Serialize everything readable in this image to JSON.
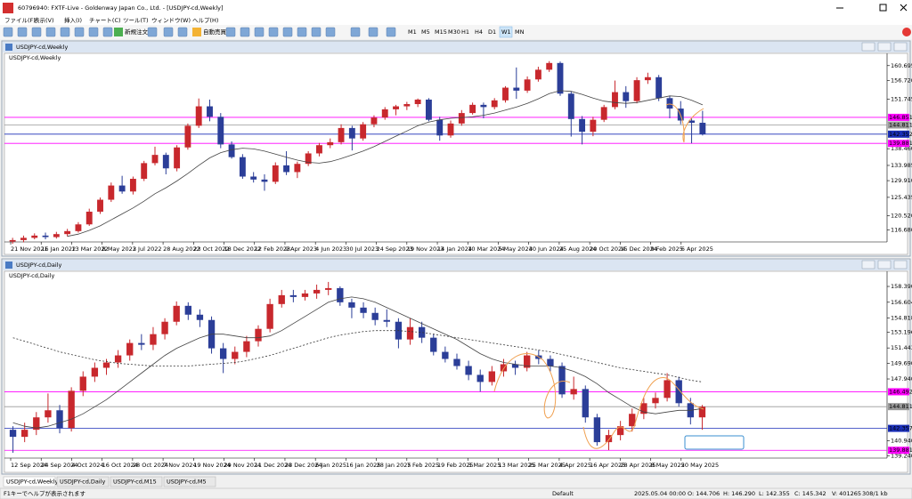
{
  "window": {
    "title": "60796940: FXTF-Live - Goldenway Japan Co., Ltd. - [USDJPY-cd,Weekly]",
    "menu": [
      "ファイル(F)",
      "表示(V)",
      "挿入(I)",
      "チャート(C)",
      "ツール(T)",
      "ウィンドウ(W)",
      "ヘルプ(H)"
    ]
  },
  "toolbar": {
    "buttons": [
      "新規注文",
      "自動売買"
    ],
    "timeframes": [
      "M1",
      "M5",
      "M15",
      "M30",
      "H1",
      "H4",
      "D1",
      "W1",
      "MN"
    ],
    "active_timeframe": "W1"
  },
  "chart_data": [
    {
      "type": "candlestick",
      "title": "USDJPY-cd,Weekly",
      "label": "USDJPY-cd,Weekly",
      "up_color": "#c8282d",
      "down_color": "#2b3e98",
      "ylim": [
        113.5,
        163.5
      ],
      "yticks": [
        160.695,
        {
          "value": 156.72,
          "label": "156.720"
        },
        151.745,
        {
          "value": 138.46,
          "label": "138.460"
        },
        133.985,
        {
          "value": 129.91,
          "label": "129.910"
        },
        125.435,
        {
          "value": 120.52,
          "label": "120.520"
        },
        {
          "value": 116.68,
          "label": "116.680"
        }
      ],
      "hlines": [
        {
          "value": 146.851,
          "color": "#ff00ff"
        },
        {
          "value": 144.811,
          "color": "#999999"
        },
        {
          "value": 142.352,
          "color": "#1a2fb8"
        },
        {
          "value": 139.881,
          "color": "#ff00ff"
        }
      ],
      "dates": [
        "21 Nov 2021",
        "16 Jan 2022",
        "13 Mar 2022",
        "8 May 2022",
        "3 Jul 2022",
        "28 Aug 2022",
        "23 Oct 2022",
        "18 Dec 2022",
        "12 Feb 2023",
        "9 Apr 2023",
        "4 Jun 2023",
        "30 Jul 2023",
        "24 Sep 2023",
        "19 Nov 2023",
        "14 Jan 2024",
        "10 Mar 2024",
        "5 May 2024",
        "30 Jun 2024",
        "25 Aug 2024",
        "20 Oct 2024",
        "15 Dec 2024",
        "9 Feb 2025",
        "6 Apr 2025"
      ],
      "candles": [
        [
          113.6,
          114.6,
          113.0,
          114.0
        ],
        [
          114.0,
          115.2,
          113.4,
          114.6
        ],
        [
          114.6,
          115.8,
          114.2,
          115.2
        ],
        [
          115.2,
          116.0,
          114.2,
          114.8
        ],
        [
          114.8,
          116.2,
          114.4,
          115.6
        ],
        [
          115.6,
          117.0,
          115.0,
          116.4
        ],
        [
          116.4,
          118.8,
          116.0,
          118.2
        ],
        [
          118.2,
          122.4,
          117.8,
          121.6
        ],
        [
          121.6,
          125.4,
          121.0,
          124.8
        ],
        [
          124.8,
          129.4,
          124.2,
          128.6
        ],
        [
          128.6,
          131.2,
          126.4,
          127.0
        ],
        [
          127.0,
          131.0,
          126.2,
          130.4
        ],
        [
          130.4,
          135.2,
          129.8,
          134.6
        ],
        [
          134.6,
          139.0,
          134.0,
          136.8
        ],
        [
          136.8,
          137.4,
          131.6,
          133.2
        ],
        [
          133.2,
          139.4,
          132.4,
          138.8
        ],
        [
          138.8,
          145.2,
          138.2,
          144.6
        ],
        [
          144.6,
          151.9,
          144.0,
          149.8
        ],
        [
          149.8,
          151.6,
          145.8,
          147.0
        ],
        [
          147.0,
          148.0,
          138.6,
          139.6
        ],
        [
          139.6,
          140.4,
          135.8,
          136.2
        ],
        [
          136.2,
          137.0,
          130.4,
          131.0
        ],
        [
          131.0,
          132.2,
          129.4,
          130.2
        ],
        [
          130.2,
          131.6,
          127.2,
          129.6
        ],
        [
          129.6,
          134.8,
          129.0,
          134.0
        ],
        [
          134.0,
          137.8,
          131.4,
          132.2
        ],
        [
          132.2,
          135.0,
          130.6,
          134.4
        ],
        [
          134.4,
          137.8,
          133.8,
          137.2
        ],
        [
          137.2,
          140.0,
          136.4,
          139.4
        ],
        [
          139.4,
          141.2,
          138.6,
          140.2
        ],
        [
          140.2,
          145.0,
          139.6,
          144.0
        ],
        [
          144.0,
          144.6,
          138.0,
          141.2
        ],
        [
          141.2,
          145.6,
          140.6,
          145.0
        ],
        [
          145.0,
          147.4,
          144.2,
          146.8
        ],
        [
          146.8,
          149.6,
          146.2,
          149.0
        ],
        [
          149.0,
          150.2,
          147.4,
          149.8
        ],
        [
          149.8,
          151.0,
          148.8,
          150.4
        ],
        [
          150.4,
          151.9,
          149.6,
          151.6
        ],
        [
          151.6,
          152.0,
          145.8,
          146.2
        ],
        [
          146.2,
          147.0,
          140.6,
          142.0
        ],
        [
          142.0,
          146.0,
          141.4,
          145.2
        ],
        [
          145.2,
          148.8,
          144.6,
          148.0
        ],
        [
          148.0,
          150.8,
          147.6,
          150.2
        ],
        [
          150.2,
          150.8,
          146.6,
          149.6
        ],
        [
          149.6,
          152.0,
          149.0,
          151.4
        ],
        [
          151.4,
          155.2,
          150.8,
          154.8
        ],
        [
          154.8,
          160.2,
          151.8,
          154.0
        ],
        [
          154.0,
          157.8,
          153.4,
          157.0
        ],
        [
          157.0,
          160.4,
          156.4,
          159.6
        ],
        [
          159.6,
          161.9,
          159.0,
          161.4
        ],
        [
          161.4,
          161.8,
          152.6,
          153.2
        ],
        [
          153.2,
          153.8,
          141.7,
          146.4
        ],
        [
          146.4,
          147.2,
          139.6,
          143.0
        ],
        [
          143.0,
          147.0,
          141.8,
          146.2
        ],
        [
          146.2,
          150.2,
          145.6,
          149.6
        ],
        [
          149.6,
          156.7,
          149.0,
          153.6
        ],
        [
          153.6,
          155.2,
          149.4,
          151.2
        ],
        [
          151.2,
          157.6,
          150.6,
          156.8
        ],
        [
          156.8,
          158.8,
          155.8,
          157.6
        ],
        [
          157.6,
          158.2,
          151.2,
          152.0
        ],
        [
          152.0,
          152.6,
          146.6,
          149.2
        ],
        [
          149.2,
          151.2,
          145.0,
          146.0
        ],
        [
          146.0,
          146.6,
          139.9,
          145.4
        ],
        [
          145.4,
          148.6,
          142.0,
          142.4
        ]
      ],
      "ma": [
        {
          "color": "#444444",
          "dashed": false,
          "values": [
            null,
            null,
            null,
            null,
            null,
            115.0,
            115.6,
            116.6,
            117.8,
            119.4,
            121.0,
            122.6,
            124.4,
            126.4,
            128.0,
            129.8,
            131.8,
            134.0,
            136.0,
            137.4,
            138.2,
            138.6,
            138.4,
            137.8,
            137.0,
            136.2,
            135.4,
            134.8,
            134.6,
            135.0,
            135.8,
            136.8,
            137.8,
            139.0,
            140.4,
            141.8,
            143.2,
            144.6,
            145.6,
            146.2,
            146.6,
            146.8,
            147.0,
            147.4,
            148.0,
            148.8,
            149.6,
            150.6,
            151.8,
            153.2,
            154.0,
            153.8,
            153.0,
            152.0,
            151.2,
            150.8,
            150.6,
            150.8,
            151.4,
            152.0,
            152.6,
            152.4,
            151.4,
            150.2
          ]
        }
      ]
    },
    {
      "type": "candlestick",
      "title": "USDJPY-cd,Daily",
      "label": "USDJPY-cd,Daily",
      "up_color": "#c8282d",
      "down_color": "#2b3e98",
      "ylim": [
        139.0,
        159.9
      ],
      "yticks": [
        {
          "value": 158.39,
          "label": "158.390"
        },
        156.604,
        154.818,
        153.196,
        151.443,
        {
          "value": 149.69,
          "label": "149.690"
        },
        {
          "value": 147.94,
          "label": "147.940"
        },
        {
          "value": 140.94,
          "label": "140.940"
        },
        {
          "value": 139.24,
          "label": "139.240"
        }
      ],
      "hlines": [
        {
          "value": 146.492,
          "color": "#ff00ff"
        },
        {
          "value": 144.811,
          "color": "#999999"
        },
        {
          "value": 142.357,
          "color": "#1a2fb8"
        },
        {
          "value": 139.881,
          "color": "#ff00ff"
        }
      ],
      "dates": [
        "12 Sep 2024",
        "24 Sep 2024",
        "4 Oct 2024",
        "16 Oct 2024",
        "28 Oct 2024",
        "7 Nov 2024",
        "19 Nov 2024",
        "29 Nov 2024",
        "11 Dec 2024",
        "23 Dec 2024",
        "6 Jan 2025",
        "16 Jan 2025",
        "28 Jan 2025",
        "7 Feb 2025",
        "19 Feb 2025",
        "3 Mar 2025",
        "13 Mar 2025",
        "25 Mar 2025",
        "4 Apr 2025",
        "16 Apr 2025",
        "28 Apr 2025",
        "8 May 2025",
        "20 May 2025"
      ],
      "candles": [
        [
          142.2,
          142.6,
          139.6,
          141.4
        ],
        [
          141.4,
          143.0,
          140.8,
          142.2
        ],
        [
          142.2,
          144.2,
          141.6,
          143.6
        ],
        [
          143.6,
          146.3,
          143.0,
          144.4
        ],
        [
          144.4,
          145.0,
          141.8,
          142.4
        ],
        [
          142.4,
          147.0,
          142.0,
          146.6
        ],
        [
          146.6,
          148.8,
          146.0,
          148.2
        ],
        [
          148.2,
          149.8,
          147.6,
          149.2
        ],
        [
          149.2,
          150.2,
          148.4,
          149.8
        ],
        [
          149.8,
          151.2,
          149.2,
          150.6
        ],
        [
          150.6,
          152.4,
          150.0,
          152.0
        ],
        [
          152.0,
          153.0,
          151.2,
          151.8
        ],
        [
          151.8,
          153.8,
          151.2,
          153.0
        ],
        [
          153.0,
          154.8,
          152.4,
          154.4
        ],
        [
          154.4,
          156.7,
          154.0,
          156.2
        ],
        [
          156.2,
          156.6,
          154.6,
          155.2
        ],
        [
          155.2,
          155.8,
          153.8,
          154.6
        ],
        [
          154.6,
          155.0,
          150.8,
          151.4
        ],
        [
          151.4,
          152.0,
          148.6,
          150.2
        ],
        [
          150.2,
          151.6,
          149.6,
          151.0
        ],
        [
          151.0,
          152.8,
          150.4,
          152.2
        ],
        [
          152.2,
          154.0,
          151.6,
          153.6
        ],
        [
          153.6,
          157.0,
          153.2,
          156.4
        ],
        [
          156.4,
          158.0,
          156.0,
          157.4
        ],
        [
          157.4,
          158.0,
          156.6,
          157.2
        ],
        [
          157.2,
          158.0,
          156.8,
          157.6
        ],
        [
          157.6,
          158.6,
          157.0,
          158.0
        ],
        [
          158.0,
          158.9,
          157.4,
          158.2
        ],
        [
          158.2,
          158.4,
          156.2,
          156.6
        ],
        [
          156.6,
          157.0,
          154.8,
          156.0
        ],
        [
          156.0,
          156.6,
          154.8,
          155.4
        ],
        [
          155.4,
          156.0,
          154.0,
          154.6
        ],
        [
          154.6,
          155.8,
          153.8,
          154.4
        ],
        [
          154.4,
          154.8,
          151.4,
          152.4
        ],
        [
          152.4,
          154.8,
          151.8,
          153.8
        ],
        [
          153.8,
          154.4,
          152.0,
          152.6
        ],
        [
          152.6,
          153.0,
          150.6,
          151.0
        ],
        [
          151.0,
          151.6,
          149.8,
          150.2
        ],
        [
          150.2,
          150.8,
          149.0,
          149.4
        ],
        [
          149.4,
          150.0,
          147.8,
          148.4
        ],
        [
          148.4,
          149.0,
          146.5,
          147.6
        ],
        [
          147.6,
          149.4,
          147.2,
          148.8
        ],
        [
          148.8,
          150.2,
          148.2,
          149.6
        ],
        [
          149.6,
          150.0,
          148.4,
          149.2
        ],
        [
          149.2,
          151.0,
          148.8,
          150.6
        ],
        [
          150.6,
          151.2,
          149.6,
          150.2
        ],
        [
          150.2,
          150.6,
          148.8,
          149.4
        ],
        [
          149.4,
          149.8,
          145.8,
          146.2
        ],
        [
          146.2,
          148.2,
          145.6,
          146.8
        ],
        [
          146.8,
          147.2,
          143.0,
          143.6
        ],
        [
          143.6,
          144.0,
          140.4,
          140.8
        ],
        [
          140.8,
          142.2,
          139.9,
          141.6
        ],
        [
          141.6,
          143.2,
          141.0,
          142.6
        ],
        [
          142.6,
          144.6,
          142.0,
          144.0
        ],
        [
          144.0,
          145.8,
          143.4,
          145.2
        ],
        [
          145.2,
          146.4,
          144.6,
          145.8
        ],
        [
          145.8,
          148.6,
          145.4,
          147.8
        ],
        [
          147.8,
          148.2,
          144.8,
          145.2
        ],
        [
          145.2,
          145.8,
          142.8,
          143.6
        ],
        [
          143.6,
          145.0,
          142.2,
          144.8
        ]
      ],
      "ma": [
        {
          "color": "#444444",
          "dashed": false,
          "values": [
            143.0,
            142.6,
            142.4,
            142.6,
            143.0,
            143.4,
            144.0,
            144.8,
            145.6,
            146.6,
            147.6,
            148.6,
            149.6,
            150.6,
            151.4,
            152.0,
            152.6,
            153.0,
            153.0,
            152.8,
            152.6,
            152.6,
            152.8,
            153.4,
            154.2,
            155.0,
            155.8,
            156.6,
            157.0,
            157.2,
            157.0,
            156.6,
            156.0,
            155.4,
            154.8,
            154.2,
            153.6,
            153.0,
            152.4,
            151.6,
            150.8,
            150.2,
            149.8,
            149.6,
            149.4,
            149.4,
            149.4,
            149.2,
            148.8,
            148.2,
            147.4,
            146.4,
            145.6,
            144.8,
            144.2,
            144.0,
            144.2,
            144.4,
            144.4,
            144.6
          ]
        },
        {
          "color": "#333333",
          "dashed": true,
          "values": [
            152.6,
            152.2,
            151.8,
            151.4,
            151.0,
            150.7,
            150.4,
            150.1,
            149.9,
            149.7,
            149.6,
            149.5,
            149.4,
            149.4,
            149.4,
            149.4,
            149.5,
            149.6,
            149.7,
            149.8,
            150.0,
            150.3,
            150.6,
            151.0,
            151.4,
            151.8,
            152.2,
            152.6,
            152.9,
            153.1,
            153.3,
            153.4,
            153.4,
            153.4,
            153.3,
            153.2,
            153.0,
            152.8,
            152.6,
            152.4,
            152.2,
            152.0,
            151.8,
            151.6,
            151.4,
            151.2,
            151.0,
            150.7,
            150.4,
            150.1,
            149.8,
            149.5,
            149.2,
            149.0,
            148.8,
            148.6,
            148.4,
            148.1,
            147.8,
            147.6
          ]
        }
      ]
    }
  ],
  "tabs": [
    "USDJPY-cd,Weekly",
    "USDJPY-cd,Daily",
    "USDJPY-cd,M15",
    "USDJPY-cd,M5"
  ],
  "status": [
    "F1キーでヘルプが表示されます",
    "Default",
    "2025.05.04 00:00",
    "O: 144.706",
    "H: 146.290",
    "L: 142.355",
    "C: 145.342",
    "V: 401265",
    "308/1 kb"
  ]
}
